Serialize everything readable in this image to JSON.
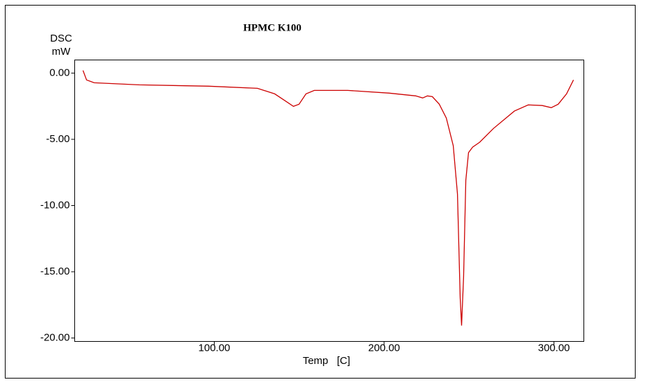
{
  "chart_data": {
    "type": "line",
    "title": "HPMC K100",
    "ylabel": [
      "DSC",
      "mW"
    ],
    "xlabel": "Temp   [C]",
    "x": [
      22.7,
      24.8,
      29.3,
      55.8,
      96.7,
      125.4,
      135.6,
      141.7,
      146.6,
      149.9,
      154.0,
      158.9,
      178.5,
      203.0,
      218.6,
      222.7,
      225.5,
      228.4,
      232.5,
      236.6,
      240.7,
      243.2,
      244.8,
      245.6,
      246.8,
      248.1,
      249.7,
      252.1,
      256.3,
      264.4,
      276.7,
      284.9,
      293.1,
      298.4,
      302.5,
      307.4,
      311.5
    ],
    "series": [
      {
        "name": "HPMC K100",
        "color": "#cc0000",
        "values": [
          0.2,
          -0.52,
          -0.73,
          -0.89,
          -0.99,
          -1.15,
          -1.57,
          -2.09,
          -2.51,
          -2.35,
          -1.57,
          -1.31,
          -1.31,
          -1.51,
          -1.72,
          -1.88,
          -1.72,
          -1.78,
          -2.35,
          -3.39,
          -5.48,
          -9.14,
          -16.97,
          -19.06,
          -15.4,
          -8.09,
          -6.0,
          -5.59,
          -5.22,
          -4.18,
          -2.87,
          -2.4,
          -2.45,
          -2.61,
          -2.35,
          -1.57,
          -0.52
        ]
      }
    ],
    "xlim": [
      17.8,
      317.6
    ],
    "ylim": [
      -20.26,
      0.99
    ],
    "xticks": [
      {
        "value": 100,
        "label": "100.00"
      },
      {
        "value": 200,
        "label": "200.00"
      },
      {
        "value": 300,
        "label": "300.00"
      }
    ],
    "yticks": [
      {
        "value": 0,
        "label": "0.00"
      },
      {
        "value": -5,
        "label": "-5.00"
      },
      {
        "value": -10,
        "label": "-10.00"
      },
      {
        "value": -15,
        "label": "-15.00"
      },
      {
        "value": -20,
        "label": "-20.00"
      }
    ]
  }
}
